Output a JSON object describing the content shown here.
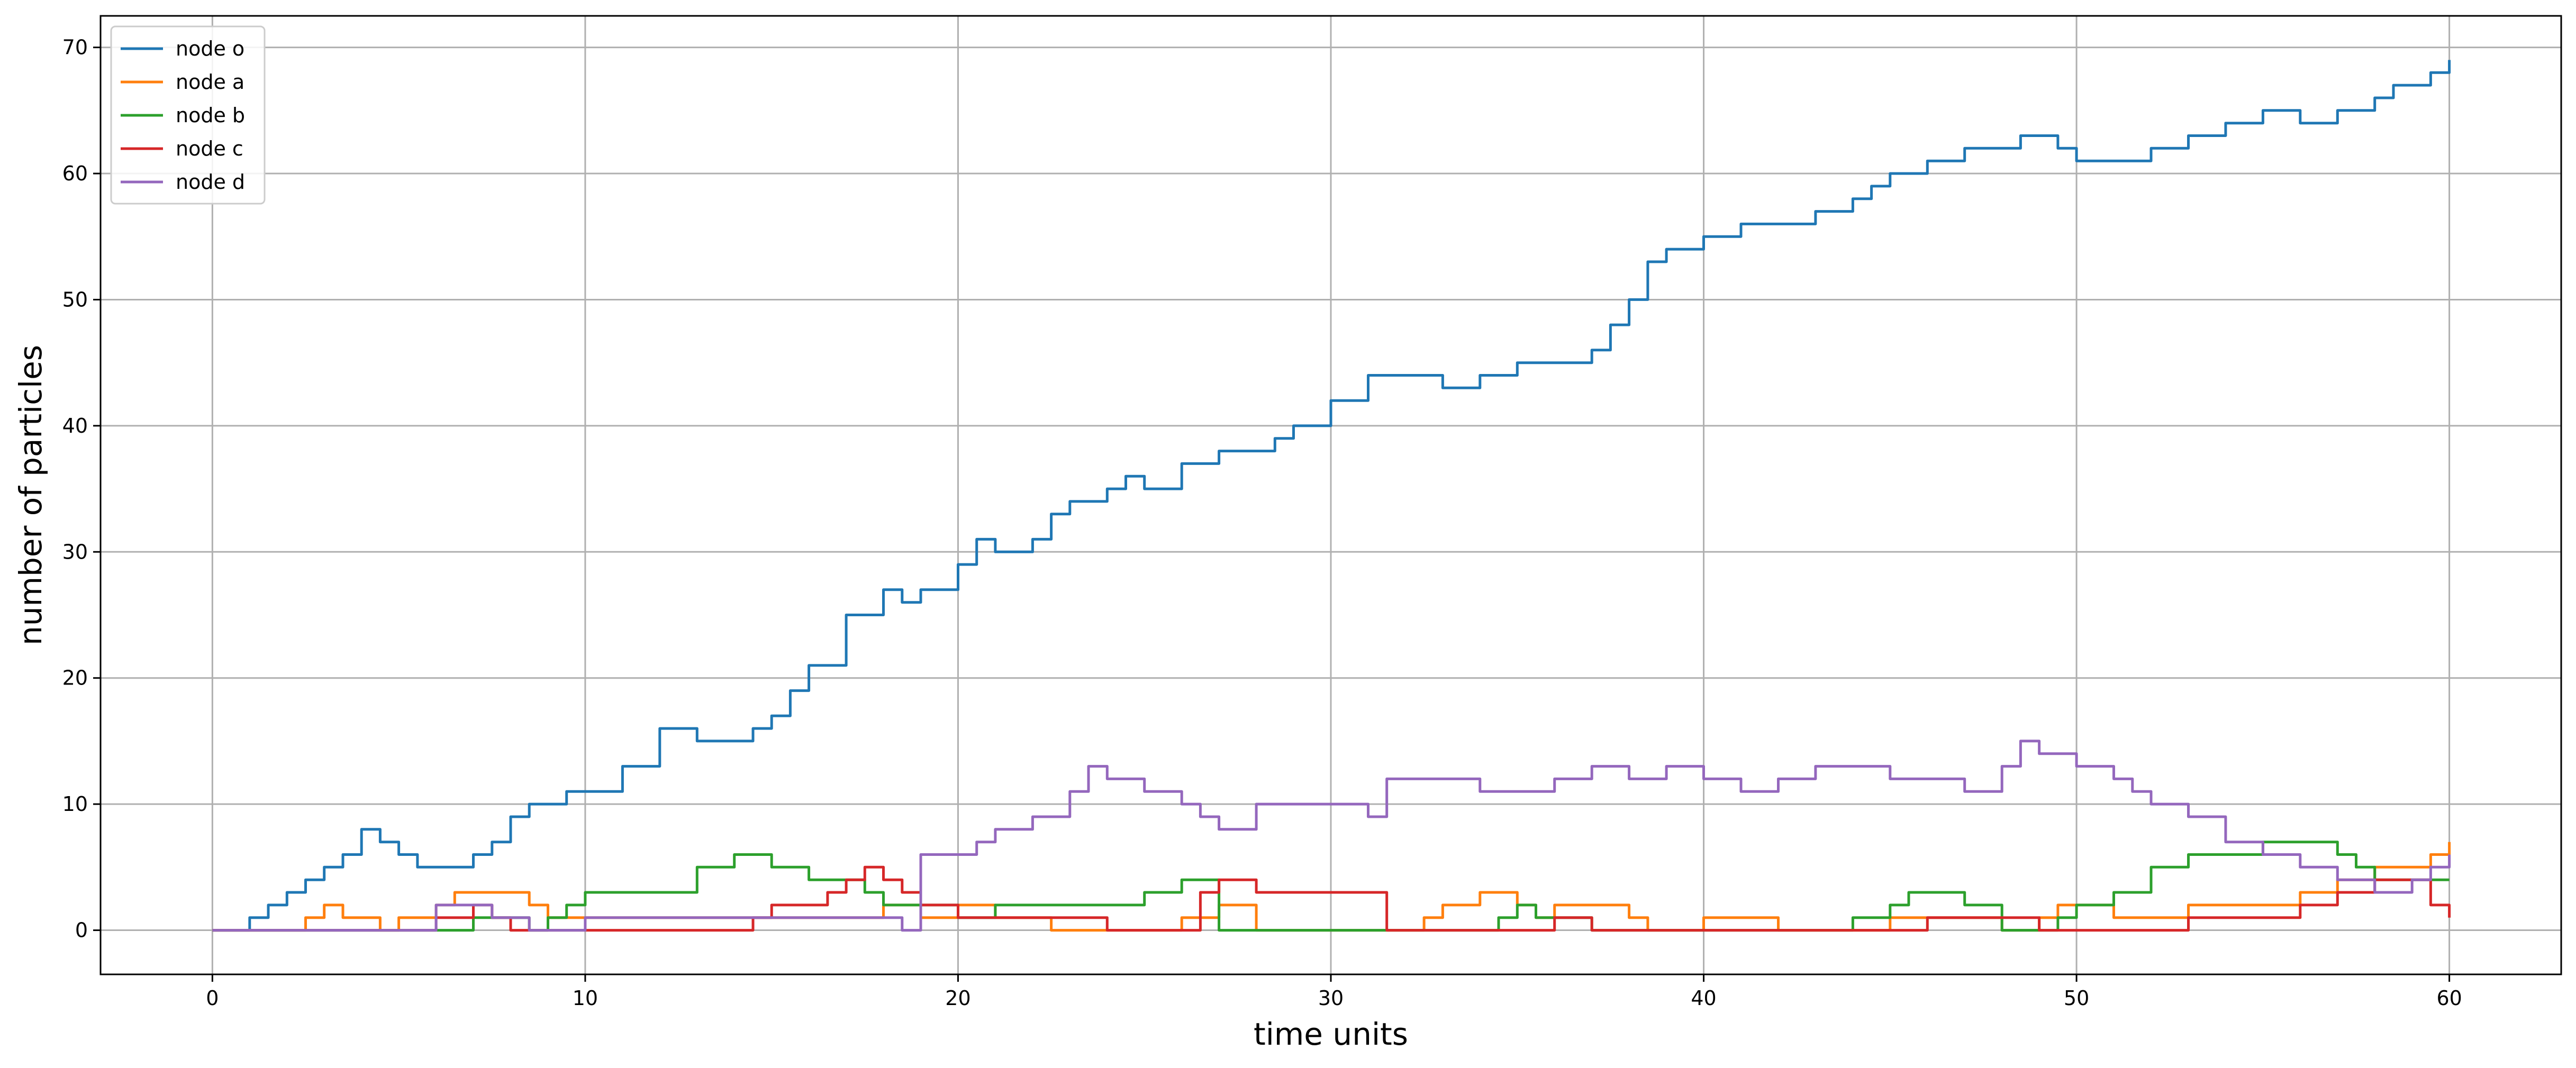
{
  "chart_data": {
    "type": "line",
    "title": "",
    "xlabel": "time units",
    "ylabel": "number of particles",
    "xlim": [
      -3,
      63
    ],
    "ylim": [
      -3.5,
      72.5
    ],
    "xticks": [
      0,
      10,
      20,
      30,
      40,
      50,
      60
    ],
    "yticks": [
      0,
      10,
      20,
      30,
      40,
      50,
      60,
      70
    ],
    "grid": true,
    "legend_position": "upper left",
    "series": [
      {
        "name": "node o",
        "color": "#1f77b4",
        "x": [
          0,
          1,
          1.5,
          2.0,
          2.5,
          3.0,
          3.5,
          4.0,
          4.5,
          5.0,
          5.5,
          6.0,
          6.5,
          7.0,
          7.5,
          8.0,
          8.5,
          9.0,
          9.5,
          10.0,
          11.0,
          12.0,
          13.0,
          14.0,
          14.5,
          15.0,
          15.5,
          16.0,
          17.0,
          18.0,
          18.5,
          19.0,
          20.0,
          20.5,
          21.0,
          22.0,
          22.5,
          23.0,
          24.0,
          24.5,
          25.0,
          26.0,
          27.0,
          28.0,
          28.5,
          29.0,
          30.0,
          31.0,
          32.0,
          33.0,
          34.0,
          35.0,
          36.0,
          37.0,
          37.5,
          38.0,
          38.5,
          39.0,
          40.0,
          41.0,
          42.0,
          43.0,
          44.0,
          44.5,
          45.0,
          46.0,
          47.0,
          48.0,
          48.5,
          49.0,
          49.5,
          50.0,
          51.0,
          52.0,
          53.0,
          54.0,
          55.0,
          56.0,
          57.0,
          58.0,
          58.5,
          59.0,
          59.5,
          60.0
        ],
        "values": [
          0,
          1,
          2,
          3,
          4,
          5,
          6,
          8,
          7,
          6,
          5,
          5,
          5,
          6,
          7,
          9,
          10,
          10,
          11,
          11,
          13,
          16,
          15,
          15,
          16,
          17,
          19,
          21,
          25,
          27,
          26,
          27,
          29,
          31,
          30,
          31,
          33,
          34,
          35,
          36,
          35,
          37,
          38,
          38,
          39,
          40,
          42,
          44,
          44,
          43,
          44,
          45,
          45,
          46,
          48,
          50,
          53,
          54,
          55,
          56,
          56,
          57,
          58,
          59,
          60,
          61,
          62,
          62,
          63,
          63,
          62,
          61,
          61,
          62,
          63,
          64,
          65,
          64,
          65,
          66,
          67,
          67,
          68,
          69
        ]
      },
      {
        "name": "node a",
        "color": "#ff7f0e",
        "x": [
          0,
          2.0,
          2.5,
          3.0,
          3.5,
          4.0,
          4.5,
          5.0,
          5.5,
          6.0,
          6.5,
          7.0,
          8.0,
          8.5,
          9.0,
          10.0,
          11.0,
          12.0,
          13.0,
          14.0,
          15.0,
          16.0,
          17.0,
          17.5,
          18.0,
          18.5,
          19.0,
          19.5,
          20.0,
          20.5,
          21.0,
          21.5,
          22.0,
          22.5,
          23.0,
          24.0,
          25.0,
          25.5,
          26.0,
          26.5,
          27.0,
          28.0,
          29.0,
          30.0,
          31.0,
          32.0,
          32.5,
          33.0,
          34.0,
          34.5,
          35.0,
          35.5,
          36.0,
          37.0,
          38.0,
          38.5,
          39.0,
          40.0,
          41.0,
          42.0,
          43.0,
          44.0,
          44.5,
          45.0,
          46.0,
          47.0,
          48.0,
          49.0,
          49.5,
          50.0,
          51.0,
          51.5,
          52.0,
          53.0,
          54.0,
          55.0,
          55.5,
          56.0,
          57.0,
          57.5,
          58.0,
          58.5,
          59.0,
          59.5,
          60.0
        ],
        "values": [
          0,
          0,
          1,
          2,
          1,
          1,
          0,
          1,
          1,
          2,
          3,
          3,
          3,
          2,
          1,
          1,
          1,
          1,
          1,
          1,
          1,
          1,
          1,
          1,
          2,
          2,
          1,
          1,
          2,
          2,
          1,
          1,
          1,
          0,
          0,
          0,
          0,
          0,
          1,
          1,
          2,
          0,
          0,
          0,
          0,
          0,
          1,
          2,
          3,
          3,
          2,
          1,
          2,
          2,
          1,
          0,
          0,
          1,
          1,
          0,
          0,
          0,
          0,
          1,
          1,
          1,
          0,
          1,
          2,
          2,
          1,
          1,
          1,
          2,
          2,
          2,
          2,
          3,
          4,
          4,
          5,
          5,
          5,
          6,
          7
        ]
      },
      {
        "name": "node b",
        "color": "#2ca02c",
        "x": [
          0,
          3.0,
          4.0,
          5.0,
          6.0,
          7.0,
          8.0,
          8.5,
          9.0,
          9.5,
          10.0,
          11.0,
          12.0,
          13.0,
          13.5,
          14.0,
          15.0,
          16.0,
          17.0,
          17.5,
          18.0,
          19.0,
          20.0,
          20.5,
          21.0,
          22.0,
          23.0,
          24.0,
          25.0,
          26.0,
          26.5,
          27.0,
          28.0,
          29.0,
          30.0,
          31.0,
          32.0,
          33.0,
          34.0,
          34.5,
          35.0,
          35.5,
          36.0,
          37.0,
          38.0,
          39.0,
          40.0,
          41.0,
          42.0,
          43.0,
          44.0,
          45.0,
          45.5,
          46.0,
          47.0,
          48.0,
          49.0,
          49.5,
          50.0,
          51.0,
          52.0,
          53.0,
          54.0,
          55.0,
          55.5,
          56.0,
          57.0,
          57.5,
          58.0,
          59.0,
          60.0
        ],
        "values": [
          0,
          0,
          0,
          0,
          0,
          1,
          1,
          0,
          1,
          2,
          3,
          3,
          3,
          5,
          5,
          6,
          5,
          4,
          4,
          3,
          2,
          2,
          1,
          1,
          2,
          2,
          2,
          2,
          3,
          4,
          4,
          0,
          0,
          0,
          0,
          0,
          0,
          0,
          0,
          1,
          2,
          1,
          1,
          0,
          0,
          0,
          0,
          0,
          0,
          0,
          1,
          2,
          3,
          3,
          2,
          0,
          0,
          1,
          2,
          3,
          5,
          6,
          6,
          7,
          7,
          7,
          6,
          5,
          4,
          4,
          4
        ]
      },
      {
        "name": "node c",
        "color": "#d62728",
        "x": [
          0,
          2.5,
          3.0,
          4.0,
          5.0,
          6.0,
          6.5,
          7.0,
          7.5,
          8.0,
          9.0,
          10.0,
          11.0,
          12.0,
          13.0,
          14.0,
          14.5,
          15.0,
          16.0,
          16.5,
          17.0,
          17.5,
          18.0,
          18.5,
          19.0,
          20.0,
          21.0,
          22.0,
          23.0,
          24.0,
          25.0,
          26.0,
          26.5,
          27.0,
          28.0,
          29.0,
          30.0,
          31.0,
          31.5,
          32.0,
          33.0,
          34.0,
          35.0,
          36.0,
          37.0,
          38.0,
          39.0,
          40.0,
          41.0,
          42.0,
          43.0,
          44.0,
          45.0,
          46.0,
          47.0,
          48.0,
          49.0,
          50.0,
          51.0,
          52.0,
          53.0,
          54.0,
          55.0,
          56.0,
          56.5,
          57.0,
          58.0,
          59.0,
          59.5,
          60.0
        ],
        "values": [
          0,
          0,
          0,
          0,
          0,
          1,
          1,
          2,
          1,
          0,
          0,
          0,
          0,
          0,
          0,
          0,
          1,
          2,
          2,
          3,
          4,
          5,
          4,
          3,
          2,
          1,
          1,
          1,
          1,
          0,
          0,
          0,
          3,
          4,
          3,
          3,
          3,
          3,
          0,
          0,
          0,
          0,
          0,
          1,
          0,
          0,
          0,
          0,
          0,
          0,
          0,
          0,
          0,
          1,
          1,
          1,
          0,
          0,
          0,
          0,
          1,
          1,
          1,
          2,
          2,
          3,
          4,
          4,
          2,
          1
        ]
      },
      {
        "name": "node d",
        "color": "#9467bd",
        "x": [
          0,
          3.0,
          4.0,
          5.0,
          5.5,
          6.0,
          7.0,
          7.5,
          8.0,
          8.5,
          9.0,
          10.0,
          11.0,
          12.0,
          13.0,
          14.0,
          15.0,
          16.0,
          17.0,
          17.5,
          18.0,
          18.5,
          19.0,
          20.0,
          20.5,
          21.0,
          22.0,
          23.0,
          23.5,
          24.0,
          25.0,
          26.0,
          26.5,
          27.0,
          28.0,
          29.0,
          30.0,
          31.0,
          31.5,
          32.0,
          33.0,
          34.0,
          35.0,
          36.0,
          37.0,
          38.0,
          39.0,
          40.0,
          41.0,
          42.0,
          43.0,
          44.0,
          45.0,
          46.0,
          47.0,
          48.0,
          48.5,
          49.0,
          50.0,
          51.0,
          51.5,
          52.0,
          53.0,
          54.0,
          55.0,
          56.0,
          57.0,
          58.0,
          59.0,
          59.5,
          60.0
        ],
        "values": [
          0,
          0,
          0,
          0,
          0,
          2,
          2,
          1,
          1,
          0,
          0,
          1,
          1,
          1,
          1,
          1,
          1,
          1,
          1,
          1,
          1,
          0,
          6,
          6,
          7,
          8,
          9,
          11,
          13,
          12,
          11,
          10,
          9,
          8,
          10,
          10,
          10,
          9,
          12,
          12,
          12,
          11,
          11,
          12,
          13,
          12,
          13,
          12,
          11,
          12,
          13,
          13,
          12,
          12,
          11,
          13,
          15,
          14,
          13,
          12,
          11,
          10,
          9,
          7,
          6,
          5,
          4,
          3,
          4,
          5,
          6
        ]
      }
    ]
  }
}
